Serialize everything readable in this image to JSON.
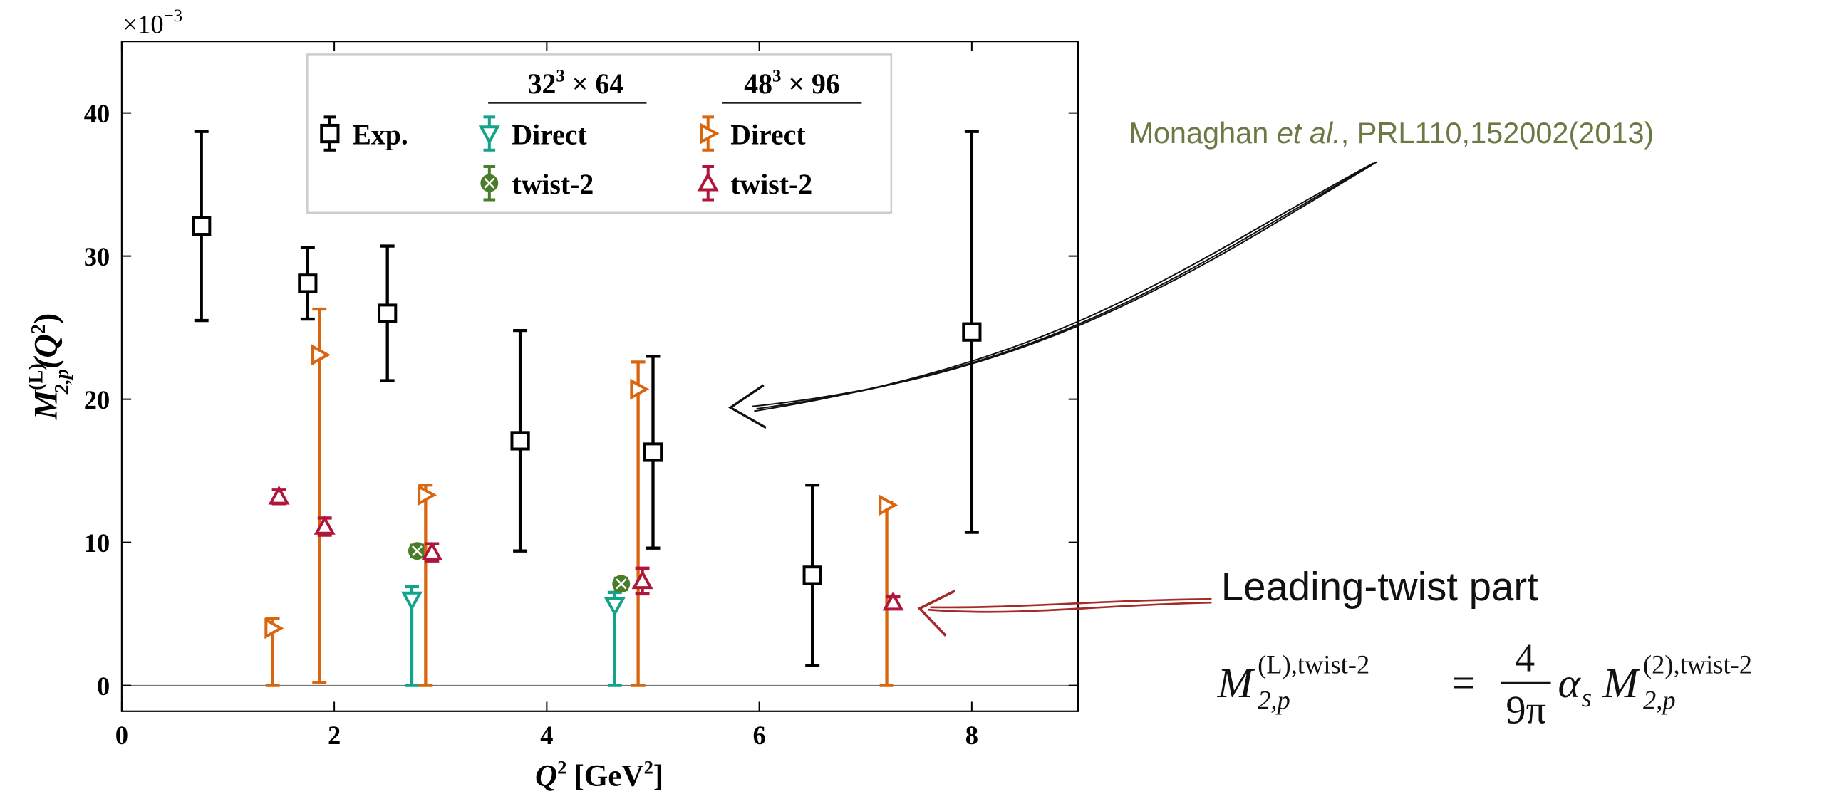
{
  "chart_data": {
    "type": "errorbar",
    "ylabel": {
      "main": "M",
      "sup": "(L)",
      "sub": "2,p",
      "arg": "(Q",
      "argsup": "2",
      "close": ")"
    },
    "xlabel": {
      "main": "Q",
      "sup": "2",
      "unit": "[GeV",
      "unitsup": "2",
      "close": "]"
    },
    "offset_text": {
      "base": "×10",
      "exp": "−3"
    },
    "xlim": [
      0,
      9
    ],
    "ylim": [
      -1.8,
      45
    ],
    "xticks": [
      0,
      2,
      4,
      6,
      8
    ],
    "yticks": [
      0,
      10,
      20,
      30,
      40
    ],
    "hline": 0,
    "legend_headers": [
      {
        "base": "32",
        "sup": "3",
        "rest": " × 64"
      },
      {
        "base": "48",
        "sup": "3",
        "rest": " × 96"
      }
    ],
    "series": [
      {
        "name": "Exp.",
        "color": "#000000",
        "marker": "square",
        "x": [
          0.75,
          1.75,
          2.5,
          3.75,
          5,
          6.5,
          8
        ],
        "values": [
          32.1,
          28.1,
          26.0,
          17.1,
          16.3,
          7.7,
          24.7
        ],
        "err_minus": [
          6.6,
          2.5,
          4.7,
          7.7,
          6.7,
          6.3,
          14.0
        ],
        "err_plus": [
          6.6,
          2.5,
          4.7,
          7.7,
          6.7,
          6.3,
          14.0
        ]
      },
      {
        "name": "Direct",
        "color": "#12a38a",
        "marker": "tri-down",
        "x": [
          2.73,
          4.64
        ],
        "values": [
          6.0,
          5.6
        ],
        "err_minus": [
          6.0,
          5.6
        ],
        "err_plus": [
          0.9,
          0.9
        ]
      },
      {
        "name": "twist-2",
        "color": "#4a7d2a",
        "marker": "circle-x",
        "x": [
          2.78,
          4.7
        ],
        "values": [
          9.4,
          7.1
        ],
        "err_minus": [
          0.4,
          0.4
        ],
        "err_plus": [
          0.4,
          0.4
        ]
      },
      {
        "name": "Direct",
        "color": "#d9660f",
        "marker": "tri-right",
        "x": [
          1.42,
          1.86,
          2.86,
          4.86,
          7.2
        ],
        "values": [
          4.0,
          23.1,
          13.3,
          20.7,
          12.6
        ],
        "err_minus": [
          4.0,
          22.9,
          13.3,
          20.7,
          12.6
        ],
        "err_plus": [
          0.7,
          3.2,
          0.7,
          1.9,
          0.2
        ]
      },
      {
        "name": "twist-2",
        "color": "#b0163c",
        "marker": "tri-up",
        "x": [
          1.48,
          1.91,
          2.92,
          4.9,
          7.26
        ],
        "values": [
          13.2,
          11.1,
          9.3,
          7.3,
          5.8
        ],
        "err_minus": [
          0.5,
          0.6,
          0.6,
          0.9,
          0.4
        ],
        "err_plus": [
          0.5,
          0.6,
          0.6,
          0.9,
          0.4
        ]
      }
    ],
    "annotations": {
      "reference": {
        "author": "Monaghan ",
        "etal": "et al.",
        "rest": ", PRL110,152002(2013)"
      },
      "leading": "Leading-twist part",
      "formula": {
        "lhs": "M",
        "lhs_sup": "(L),twist-2",
        "lhs_sub": "2,p",
        "eq": "=",
        "num": "4",
        "den": "9π",
        "alpha": "α",
        "alpha_sub": "s",
        "rhs": "M",
        "rhs_sup": "(2),twist-2",
        "rhs_sub": "2,p"
      }
    }
  }
}
